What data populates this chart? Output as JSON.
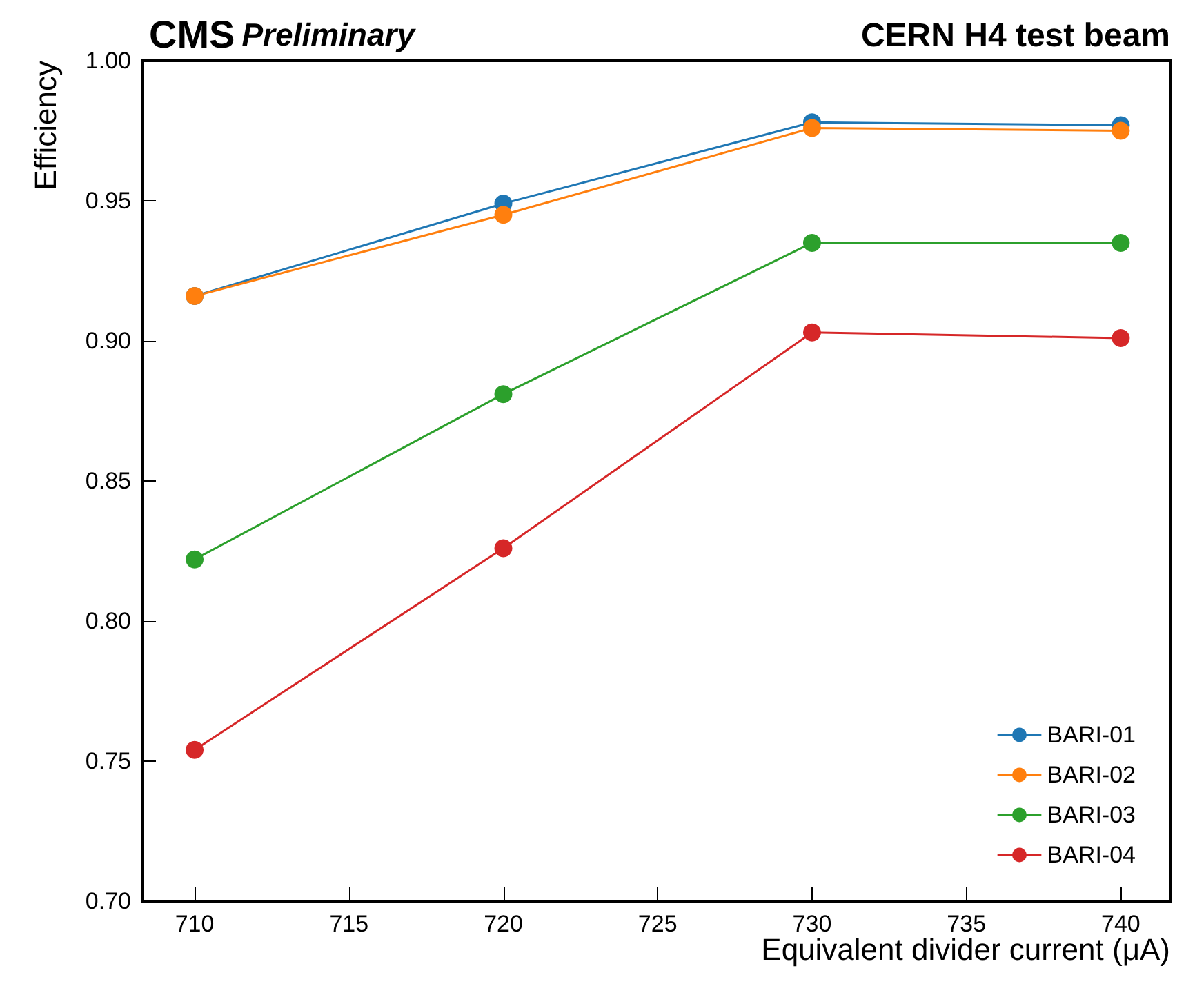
{
  "chart_data": {
    "type": "line",
    "title": "CMS",
    "subtitle": "Preliminary",
    "annotations": [
      "CERN H4 test beam"
    ],
    "xlabel": "Equivalent divider current (μA)",
    "ylabel": "Efficiency",
    "x": [
      710,
      720,
      730,
      740
    ],
    "series": [
      {
        "name": "BARI-01",
        "color": "#1f77b4",
        "values": [
          0.916,
          0.949,
          0.978,
          0.977
        ]
      },
      {
        "name": "BARI-02",
        "color": "#ff7f0e",
        "values": [
          0.916,
          0.945,
          0.976,
          0.975
        ]
      },
      {
        "name": "BARI-03",
        "color": "#2ca02c",
        "values": [
          0.822,
          0.881,
          0.935,
          0.935
        ]
      },
      {
        "name": "BARI-04",
        "color": "#d62728",
        "values": [
          0.754,
          0.826,
          0.903,
          0.901
        ]
      }
    ],
    "xlim": [
      708.3,
      741.6
    ],
    "xticks": [
      710,
      715,
      720,
      725,
      730,
      735,
      740
    ],
    "ylim": [
      0.7,
      1.0
    ],
    "yticks": [
      {
        "value": 0.7,
        "label": "0.70"
      },
      {
        "value": 0.75,
        "label": "0.75"
      },
      {
        "value": 0.8,
        "label": "0.80"
      },
      {
        "value": 0.85,
        "label": "0.85"
      },
      {
        "value": 0.9,
        "label": "0.90"
      },
      {
        "value": 0.95,
        "label": "0.95"
      },
      {
        "value": 1.0,
        "label": "1.00"
      }
    ],
    "grid": false,
    "legend": "bottom right",
    "marker": "circle",
    "line_style": "solid"
  }
}
